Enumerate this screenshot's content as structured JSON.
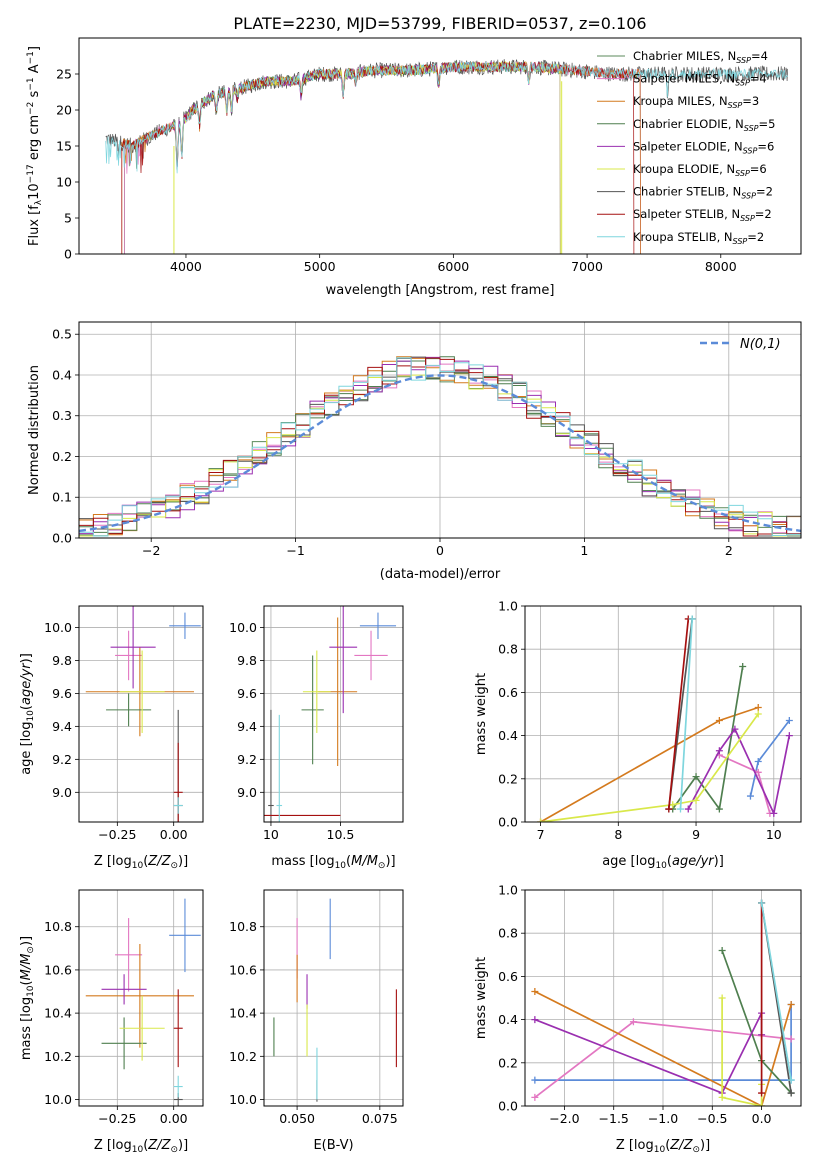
{
  "figure": {
    "title": "PLATE=2230, MJD=53799, FIBERID=0537, z=0.106",
    "colors": {
      "Chabrier MILES": "#5b8a5b",
      "Salpeter MILES": "#e377c2",
      "Kroupa MILES": "#d47a1e",
      "Chabrier ELODIE": "#4f7f4f",
      "Salpeter ELODIE": "#9a2fb0",
      "Kroupa ELODIE": "#d9e84a",
      "Chabrier STELIB": "#555555",
      "Salpeter STELIB": "#a51010",
      "Kroupa STELIB": "#7fd6de",
      "normal": "#5b8bd8"
    }
  },
  "chart_data": [
    {
      "id": "spectrum",
      "type": "line",
      "xlabel": "wavelength [Angstrom, rest frame]",
      "ylabel": "Flux [f_λ10^-17 erg cm^-2 s^-1 A^-1]",
      "xlim": [
        3200,
        8600
      ],
      "ylim": [
        0,
        30
      ],
      "xticks": [
        4000,
        5000,
        6000,
        7000,
        8000
      ],
      "yticks": [
        0,
        5,
        10,
        15,
        20,
        25
      ],
      "legend_position": "right",
      "legend": [
        "Chabrier MILES, N_SSP=4",
        "Salpeter MILES, N_SSP=4",
        "Kroupa MILES, N_SSP=3",
        "Chabrier ELODIE, N_SSP=5",
        "Salpeter ELODIE, N_SSP=6",
        "Kroupa ELODIE, N_SSP=6",
        "Chabrier STELIB, N_SSP=2",
        "Salpeter STELIB, N_SSP=2",
        "Kroupa STELIB, N_SSP=2"
      ],
      "continuum": [
        [
          3400,
          16
        ],
        [
          3600,
          15
        ],
        [
          3800,
          17
        ],
        [
          3950,
          18
        ],
        [
          4050,
          20
        ],
        [
          4200,
          22
        ],
        [
          4400,
          23
        ],
        [
          4600,
          24
        ],
        [
          4800,
          24
        ],
        [
          5000,
          25
        ],
        [
          5200,
          25
        ],
        [
          5400,
          25.5
        ],
        [
          5700,
          25.5
        ],
        [
          6000,
          26
        ],
        [
          6300,
          26
        ],
        [
          6600,
          26
        ],
        [
          6900,
          25.5
        ],
        [
          7200,
          25
        ],
        [
          7400,
          25
        ],
        [
          7600,
          25
        ],
        [
          7900,
          25
        ],
        [
          8200,
          25
        ],
        [
          8500,
          25
        ]
      ]
    },
    {
      "id": "residuals",
      "type": "bar",
      "xlabel": "(data-model)/error",
      "ylabel": "Normed distribution",
      "xlim": [
        -2.5,
        2.5
      ],
      "ylim": [
        0,
        0.53
      ],
      "xticks": [
        -2,
        -1,
        0,
        1,
        2
      ],
      "yticks": [
        0.0,
        0.1,
        0.2,
        0.3,
        0.4,
        0.5
      ],
      "legend_position": "top-right",
      "legend": [
        "N(0,1)"
      ],
      "bin_width": 0.1
    },
    {
      "id": "age_vs_Z",
      "type": "scatter",
      "xlabel": "Z [log10(Z/Z⊙)]",
      "ylabel": "age [log10(age/yr)]",
      "xlim": [
        -0.42,
        0.13
      ],
      "ylim": [
        8.82,
        10.13
      ],
      "xticks": [
        -0.25,
        0.0
      ],
      "xticklabels": [
        "−0.25",
        "0.00"
      ],
      "yticks": [
        9.0,
        9.2,
        9.4,
        9.6,
        9.8,
        10.0
      ],
      "points": [
        {
          "s": "Chabrier MILES",
          "x": 0.05,
          "y": 10.01,
          "xerr": 0.07,
          "yerr": 0.08,
          "c": "#5b8bd8"
        },
        {
          "s": "Salpeter MILES",
          "x": -0.2,
          "y": 9.83,
          "xerr": 0.06,
          "yerr": 0.15,
          "c": "#e377c2"
        },
        {
          "s": "Kroupa MILES",
          "x": -0.15,
          "y": 9.61,
          "xerr": 0.24,
          "yerr": 0.27,
          "c": "#d47a1e"
        },
        {
          "s": "Chabrier ELODIE",
          "x": -0.2,
          "y": 9.5,
          "xerr": 0.1,
          "yerr": 0.1,
          "c": "#4f7f4f"
        },
        {
          "s": "Salpeter ELODIE",
          "x": -0.18,
          "y": 9.88,
          "xerr": 0.1,
          "yerr": 0.25,
          "c": "#9a2fb0"
        },
        {
          "s": "Kroupa ELODIE",
          "x": -0.14,
          "y": 9.61,
          "xerr": 0.1,
          "yerr": 0.25,
          "c": "#d9e84a"
        },
        {
          "s": "Chabrier STELIB",
          "x": 0.02,
          "y": 8.92,
          "xerr": 0.02,
          "yerr": 0.58,
          "c": "#555555"
        },
        {
          "s": "Salpeter STELIB",
          "x": 0.02,
          "y": 9.0,
          "xerr": 0.02,
          "yerr": 0.3,
          "c": "#a51010"
        },
        {
          "s": "Kroupa STELIB",
          "x": 0.02,
          "y": 8.92,
          "xerr": 0.02,
          "yerr": 0.05,
          "c": "#7fd6de"
        }
      ]
    },
    {
      "id": "age_vs_mass",
      "type": "scatter",
      "xlabel": "mass [log10(M/M⊙)]",
      "ylabel": "",
      "xlim": [
        9.95,
        10.95
      ],
      "ylim": [
        8.82,
        10.13
      ],
      "xticks": [
        10.0,
        10.5
      ],
      "yticks": [
        9.0,
        9.2,
        9.4,
        9.6,
        9.8,
        10.0
      ],
      "points": [
        {
          "s": "Chabrier MILES",
          "x": 10.77,
          "y": 10.01,
          "xerr": 0.13,
          "yerr": 0.08,
          "c": "#5b8bd8"
        },
        {
          "s": "Salpeter MILES",
          "x": 10.72,
          "y": 9.83,
          "xerr": 0.12,
          "yerr": 0.15,
          "c": "#e377c2"
        },
        {
          "s": "Kroupa MILES",
          "x": 10.48,
          "y": 9.61,
          "xerr": 0.14,
          "yerr": 0.45,
          "c": "#d47a1e"
        },
        {
          "s": "Chabrier ELODIE",
          "x": 10.3,
          "y": 9.5,
          "xerr": 0.08,
          "yerr": 0.33,
          "c": "#4f7f4f"
        },
        {
          "s": "Salpeter ELODIE",
          "x": 10.52,
          "y": 9.88,
          "xerr": 0.1,
          "yerr": 0.4,
          "c": "#9a2fb0"
        },
        {
          "s": "Kroupa ELODIE",
          "x": 10.33,
          "y": 9.61,
          "xerr": 0.1,
          "yerr": 0.25,
          "c": "#d9e84a"
        },
        {
          "s": "Chabrier STELIB",
          "x": 10.0,
          "y": 8.92,
          "xerr": 0.02,
          "yerr": 0.58,
          "c": "#555555"
        },
        {
          "s": "Salpeter STELIB",
          "x": 10.15,
          "y": 8.86,
          "xerr": 0.35,
          "yerr": 0.0,
          "c": "#a51010"
        },
        {
          "s": "Kroupa STELIB",
          "x": 10.06,
          "y": 8.92,
          "xerr": 0.02,
          "yerr": 0.55,
          "c": "#7fd6de"
        }
      ]
    },
    {
      "id": "weight_vs_age",
      "type": "line",
      "xlabel": "age [log10(age/yr)]",
      "ylabel": "mass weight",
      "xlim": [
        6.8,
        10.35
      ],
      "ylim": [
        0,
        1.0
      ],
      "xticks": [
        7,
        8,
        9,
        10
      ],
      "yticks": [
        0.0,
        0.2,
        0.4,
        0.6,
        0.8,
        1.0
      ],
      "series": [
        {
          "s": "Chabrier MILES",
          "c": "#5b8bd8",
          "x": [
            9.7,
            9.8,
            10.2
          ],
          "y": [
            0.12,
            0.28,
            0.47
          ]
        },
        {
          "s": "Salpeter MILES",
          "c": "#e377c2",
          "x": [
            9.3,
            9.8,
            9.95
          ],
          "y": [
            0.31,
            0.23,
            0.04
          ]
        },
        {
          "s": "Kroupa MILES",
          "c": "#d47a1e",
          "x": [
            7.0,
            9.3,
            9.8
          ],
          "y": [
            0.0,
            0.47,
            0.53
          ]
        },
        {
          "s": "Chabrier ELODIE",
          "c": "#4f7f4f",
          "x": [
            8.7,
            9.0,
            9.3,
            9.6
          ],
          "y": [
            0.06,
            0.21,
            0.06,
            0.72
          ]
        },
        {
          "s": "Salpeter ELODIE",
          "c": "#9a2fb0",
          "x": [
            8.9,
            9.3,
            9.5,
            10.0,
            10.2
          ],
          "y": [
            0.06,
            0.33,
            0.43,
            0.04,
            0.4
          ]
        },
        {
          "s": "Kroupa ELODIE",
          "c": "#d9e84a",
          "x": [
            7.0,
            8.7,
            9.0,
            9.8
          ],
          "y": [
            0.0,
            0.08,
            0.1,
            0.5
          ]
        },
        {
          "s": "Chabrier STELIB",
          "c": "#555555",
          "x": [
            8.65,
            8.95
          ],
          "y": [
            0.06,
            0.94
          ]
        },
        {
          "s": "Salpeter STELIB",
          "c": "#a51010",
          "x": [
            8.65,
            8.9
          ],
          "y": [
            0.06,
            0.94
          ]
        },
        {
          "s": "Kroupa STELIB",
          "c": "#7fd6de",
          "x": [
            8.8,
            8.95
          ],
          "y": [
            0.06,
            0.94
          ]
        }
      ]
    },
    {
      "id": "mass_vs_Z",
      "type": "scatter",
      "xlabel": "Z [log10(Z/Z⊙)]",
      "ylabel": "mass [log10(M/M⊙)]",
      "xlim": [
        -0.42,
        0.13
      ],
      "ylim": [
        9.97,
        10.97
      ],
      "xticks": [
        -0.25,
        0.0
      ],
      "xticklabels": [
        "−0.25",
        "0.00"
      ],
      "yticks": [
        10.0,
        10.2,
        10.4,
        10.6,
        10.8
      ],
      "points": [
        {
          "s": "Chabrier MILES",
          "x": 0.05,
          "y": 10.76,
          "xerr": 0.07,
          "yerr": 0.17,
          "c": "#5b8bd8"
        },
        {
          "s": "Salpeter MILES",
          "x": -0.2,
          "y": 10.67,
          "xerr": 0.06,
          "yerr": 0.17,
          "c": "#e377c2"
        },
        {
          "s": "Kroupa MILES",
          "x": -0.15,
          "y": 10.48,
          "xerr": 0.24,
          "yerr": 0.24,
          "c": "#d47a1e"
        },
        {
          "s": "Chabrier ELODIE",
          "x": -0.22,
          "y": 10.26,
          "xerr": 0.1,
          "yerr": 0.12,
          "c": "#4f7f4f"
        },
        {
          "s": "Salpeter ELODIE",
          "x": -0.22,
          "y": 10.51,
          "xerr": 0.1,
          "yerr": 0.07,
          "c": "#9a2fb0"
        },
        {
          "s": "Kroupa ELODIE",
          "x": -0.14,
          "y": 10.33,
          "xerr": 0.1,
          "yerr": 0.15,
          "c": "#d9e84a"
        },
        {
          "s": "Chabrier STELIB",
          "x": 0.02,
          "y": 10.0,
          "xerr": 0.02,
          "yerr": 0.03,
          "c": "#555555"
        },
        {
          "s": "Salpeter STELIB",
          "x": 0.02,
          "y": 10.33,
          "xerr": 0.02,
          "yerr": 0.18,
          "c": "#a51010"
        },
        {
          "s": "Kroupa STELIB",
          "x": 0.02,
          "y": 10.06,
          "xerr": 0.02,
          "yerr": 0.05,
          "c": "#7fd6de"
        }
      ]
    },
    {
      "id": "mass_vs_ebv",
      "type": "scatter",
      "xlabel": "E(B-V)",
      "ylabel": "",
      "xlim": [
        0.04,
        0.082
      ],
      "ylim": [
        9.97,
        10.97
      ],
      "xticks": [
        0.05,
        0.075
      ],
      "xticklabels": [
        "0.050",
        "0.075"
      ],
      "yticks": [
        10.0,
        10.2,
        10.4,
        10.6,
        10.8
      ],
      "points": [
        {
          "s": "Chabrier MILES",
          "x": 0.06,
          "y": 10.79,
          "xerr": 0,
          "yerr": 0.14,
          "c": "#5b8bd8"
        },
        {
          "s": "Salpeter MILES",
          "x": 0.05,
          "y": 10.7,
          "xerr": 0,
          "yerr": 0.14,
          "c": "#e377c2"
        },
        {
          "s": "Kroupa MILES",
          "x": 0.05,
          "y": 10.56,
          "xerr": 0,
          "yerr": 0.11,
          "c": "#d47a1e"
        },
        {
          "s": "Chabrier ELODIE",
          "x": 0.043,
          "y": 10.29,
          "xerr": 0,
          "yerr": 0.09,
          "c": "#4f7f4f"
        },
        {
          "s": "Salpeter ELODIE",
          "x": 0.053,
          "y": 10.5,
          "xerr": 0,
          "yerr": 0.08,
          "c": "#9a2fb0"
        },
        {
          "s": "Kroupa ELODIE",
          "x": 0.053,
          "y": 10.32,
          "xerr": 0,
          "yerr": 0.12,
          "c": "#d9e84a"
        },
        {
          "s": "Chabrier STELIB",
          "x": 0.056,
          "y": 10.04,
          "xerr": 0,
          "yerr": 0.05,
          "c": "#555555"
        },
        {
          "s": "Salpeter STELIB",
          "x": 0.08,
          "y": 10.33,
          "xerr": 0,
          "yerr": 0.18,
          "c": "#a51010"
        },
        {
          "s": "Kroupa STELIB",
          "x": 0.056,
          "y": 10.12,
          "xerr": 0,
          "yerr": 0.12,
          "c": "#7fd6de"
        }
      ]
    },
    {
      "id": "weight_vs_Z",
      "type": "line",
      "xlabel": "Z [log10(Z/Z⊙)]",
      "ylabel": "mass weight",
      "xlim": [
        -2.4,
        0.4
      ],
      "ylim": [
        0,
        1.0
      ],
      "xticks": [
        -2.0,
        -1.5,
        -1.0,
        -0.5,
        0.0
      ],
      "xticklabels": [
        "−2.0",
        "−1.5",
        "−1.0",
        "−0.5",
        "0.0"
      ],
      "yticks": [
        0.0,
        0.2,
        0.4,
        0.6,
        0.8,
        1.0
      ],
      "series": [
        {
          "s": "Chabrier MILES",
          "c": "#5b8bd8",
          "x": [
            -2.3,
            0.3,
            0.3
          ],
          "y": [
            0.12,
            0.12,
            0.47
          ]
        },
        {
          "s": "Salpeter MILES",
          "c": "#e377c2",
          "x": [
            -2.3,
            -1.3,
            0.3
          ],
          "y": [
            0.04,
            0.39,
            0.31
          ]
        },
        {
          "s": "Kroupa MILES",
          "c": "#d47a1e",
          "x": [
            -2.3,
            0.0,
            0.3
          ],
          "y": [
            0.53,
            0.0,
            0.47
          ]
        },
        {
          "s": "Chabrier ELODIE",
          "c": "#4f7f4f",
          "x": [
            -0.4,
            0.0,
            0.3
          ],
          "y": [
            0.72,
            0.21,
            0.06
          ]
        },
        {
          "s": "Salpeter ELODIE",
          "c": "#9a2fb0",
          "x": [
            -2.3,
            -0.4,
            0.0,
            0.0
          ],
          "y": [
            0.4,
            0.06,
            0.43,
            0.33
          ]
        },
        {
          "s": "Kroupa ELODIE",
          "c": "#d9e84a",
          "x": [
            -0.4,
            -0.4,
            0.0,
            0.0
          ],
          "y": [
            0.5,
            0.04,
            0.0,
            0.1
          ]
        },
        {
          "s": "Chabrier STELIB",
          "c": "#555555",
          "x": [
            0.0,
            0.3
          ],
          "y": [
            0.94,
            0.06
          ]
        },
        {
          "s": "Salpeter STELIB",
          "c": "#a51010",
          "x": [
            0.0,
            0.0
          ],
          "y": [
            0.94,
            0.06
          ]
        },
        {
          "s": "Kroupa STELIB",
          "c": "#7fd6de",
          "x": [
            0.0,
            0.3
          ],
          "y": [
            0.94,
            0.12
          ]
        }
      ]
    }
  ]
}
